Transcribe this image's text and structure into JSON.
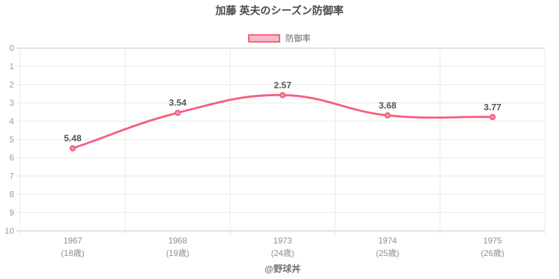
{
  "chart_data": {
    "type": "line",
    "title": "加藤 英夫のシーズン防御率",
    "legend_label": "防御率",
    "footer": "@野球丼",
    "x_years": [
      "1967",
      "1968",
      "1973",
      "1974",
      "1975"
    ],
    "x_ages": [
      "(18歳)",
      "(19歳)",
      "(24歳)",
      "(25歳)",
      "(26歳)"
    ],
    "series": [
      {
        "name": "防御率",
        "values": [
          5.48,
          3.54,
          2.57,
          3.68,
          3.77
        ]
      }
    ],
    "point_labels": [
      "5.48",
      "3.54",
      "2.57",
      "3.68",
      "3.77"
    ],
    "ylim": [
      0,
      10
    ],
    "y_reversed": true,
    "yticks": [
      0,
      1,
      2,
      3,
      4,
      5,
      6,
      7,
      8,
      9,
      10
    ],
    "grid": true,
    "legend_position": "top",
    "line_tension": 0.4,
    "colors": {
      "line": "#f4607f",
      "point_fill": "#f791a8",
      "legend_fill": "#fbb7c5",
      "grid": "#e8e8e8",
      "axis_edge": "#c2c2c2",
      "tick_text": "#9b9b9b",
      "x_text": "#8e8e8e",
      "data_label": "#555555",
      "title_text": "#4a4a4a",
      "footer_text": "#757575"
    }
  }
}
